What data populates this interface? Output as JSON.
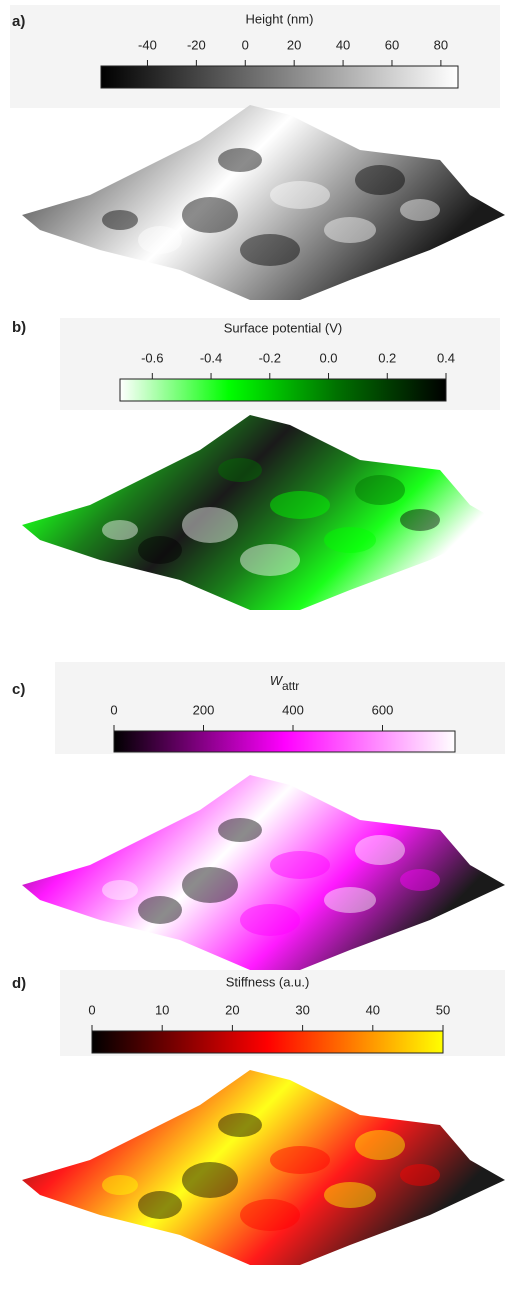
{
  "chart_data": [
    {
      "type": "colorbar-surface",
      "panel_label": "a)",
      "title": "Height  (nm)",
      "colormap": [
        "#000000",
        "#ffffff"
      ],
      "clim": [
        -59,
        87
      ],
      "cticks": [
        -40,
        -20,
        0,
        20,
        40,
        60,
        80
      ]
    },
    {
      "type": "colorbar-surface",
      "panel_label": "b)",
      "title": "Surface potential (V)",
      "colormap": [
        "#ffffff",
        "#00ff00",
        "#007000",
        "#000000"
      ],
      "clim": [
        -0.71,
        0.4
      ],
      "cticks": [
        -0.6,
        -0.4,
        -0.2,
        {
          "value": 0,
          "label": "0.0"
        },
        0.2,
        0.4
      ]
    },
    {
      "type": "colorbar-surface",
      "panel_label": "c)",
      "title": "W",
      "title_sub": "attr",
      "colormap": [
        "#000000",
        "#ff00ff",
        "#ffffff"
      ],
      "clim": [
        0,
        762
      ],
      "cticks": [
        0,
        200,
        400,
        600
      ]
    },
    {
      "type": "colorbar-surface",
      "panel_label": "d)",
      "title": "Stiffness (a.u.)",
      "colormap": [
        "#000000",
        "#ff0000",
        "#ffff00"
      ],
      "clim": [
        0,
        50
      ],
      "cticks": [
        0,
        10,
        20,
        30,
        40,
        50
      ]
    }
  ]
}
